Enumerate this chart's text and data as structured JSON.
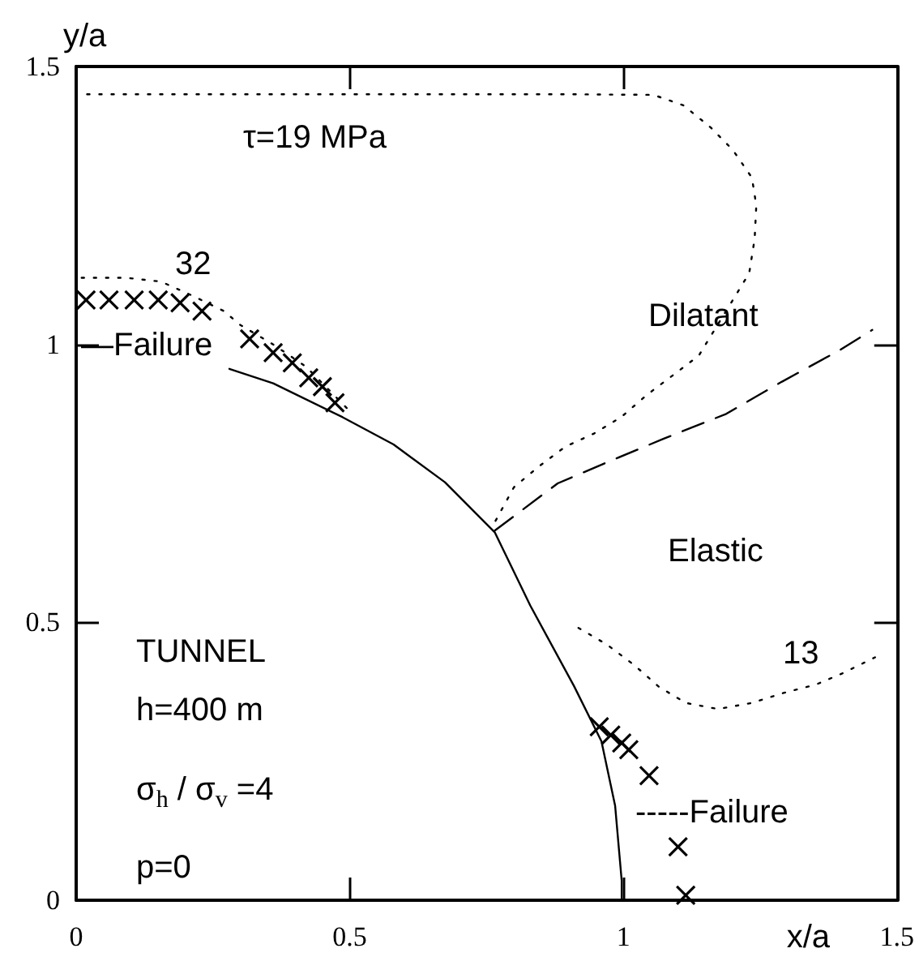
{
  "chart_data": {
    "type": "line",
    "xlabel": "x/a",
    "ylabel": "y/a",
    "xlim": [
      0,
      1.5
    ],
    "ylim": [
      0,
      1.5
    ],
    "xticks": [
      0,
      0.5,
      1,
      1.5
    ],
    "yticks": [
      0,
      0.5,
      1,
      1.5
    ],
    "series": [
      {
        "color": "#000000",
        "line_style": "solid",
        "marker": "none",
        "x": [
          0.28,
          0.36,
          0.487,
          0.58,
          0.674,
          0.765,
          0.83,
          0.91,
          0.96,
          0.985,
          0.997,
          0.997
        ],
        "values": [
          0.956,
          0.93,
          0.869,
          0.82,
          0.752,
          0.662,
          0.53,
          0.385,
          0.286,
          0.17,
          0.035,
          0
        ]
      },
      {
        "type": "line",
        "color": "#000000",
        "line_style": "dotted",
        "marker": "none",
        "x": [
          0.02,
          0.3,
          0.6,
          0.9,
          1.055,
          1.11,
          1.16,
          1.2,
          1.235,
          1.243,
          1.24,
          1.23,
          1.138,
          1.094,
          1.044,
          0.997,
          0.947,
          0.894,
          0.845,
          0.8,
          0.765
        ],
        "values": [
          1.45,
          1.45,
          1.45,
          1.45,
          1.449,
          1.43,
          1.39,
          1.35,
          1.3,
          1.25,
          1.19,
          1.128,
          0.98,
          0.947,
          0.91,
          0.87,
          0.84,
          0.816,
          0.78,
          0.743,
          0.68
        ]
      },
      {
        "color": "#000000",
        "line_style": "dashed",
        "marker": "none",
        "x": [
          0.765,
          0.88,
          0.968,
          1.073,
          1.188,
          1.29,
          1.396,
          1.455
        ],
        "values": [
          0.665,
          0.75,
          0.787,
          0.83,
          0.875,
          0.933,
          0.99,
          1.026
        ]
      },
      {
        "type": "line",
        "color": "#000000",
        "line_style": "dotted",
        "marker": "none",
        "x": [
          0.01,
          0.09,
          0.155,
          0.214,
          0.27,
          0.3,
          0.36,
          0.42,
          0.5
        ],
        "values": [
          1.12,
          1.12,
          1.113,
          1.087,
          1.06,
          1.035,
          1.0,
          0.96,
          0.88
        ]
      },
      {
        "type": "line",
        "color": "#000000",
        "line_style": "dotted",
        "marker": "none",
        "x": [
          0.918,
          0.97,
          1.02,
          1.065,
          1.114,
          1.173,
          1.235,
          1.293,
          1.352,
          1.4,
          1.46
        ],
        "values": [
          0.49,
          0.46,
          0.423,
          0.384,
          0.355,
          0.344,
          0.355,
          0.373,
          0.388,
          0.408,
          0.437
        ]
      },
      {
        "type": "scatter",
        "color": "#000000",
        "marker": "cross",
        "x": [
          0.018,
          0.06,
          0.106,
          0.15,
          0.19,
          0.23,
          0.317,
          0.36,
          0.395,
          0.425,
          0.45,
          0.473,
          0.956,
          0.977,
          0.997,
          1.01,
          1.047,
          1.1,
          1.114
        ],
        "values": [
          1.08,
          1.08,
          1.08,
          1.08,
          1.075,
          1.06,
          1.01,
          0.985,
          0.967,
          0.94,
          0.924,
          0.895,
          0.312,
          0.297,
          0.283,
          0.271,
          0.224,
          0.096,
          0.009
        ]
      }
    ],
    "annotations": [
      "τ=19 MPa",
      "32",
      "—Failure",
      "Dilatant",
      "Elastic",
      "13",
      "-----Failure",
      "TUNNEL",
      "h=400 m",
      "σ$_{h}$ / σ$_{v}$ =4",
      "p=0"
    ],
    "grid": false
  }
}
